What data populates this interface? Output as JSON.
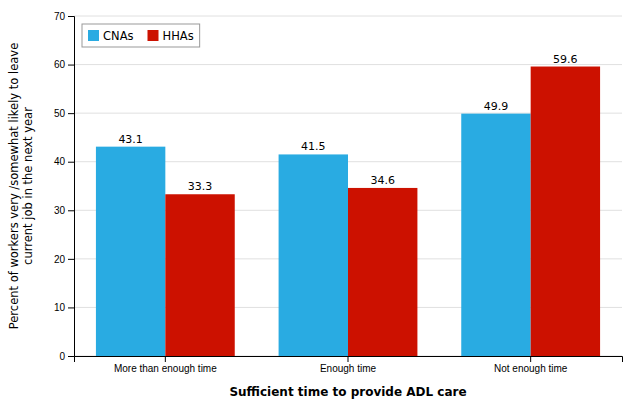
{
  "chart_data": {
    "type": "bar",
    "categories": [
      "More than enough time",
      "Enough time",
      "Not enough time"
    ],
    "series": [
      {
        "name": "CNAs",
        "color": "#29ABE2",
        "values": [
          43.1,
          41.5,
          49.9
        ]
      },
      {
        "name": "HHAs",
        "color": "#CC1100",
        "values": [
          33.3,
          34.6,
          59.6
        ]
      }
    ],
    "xlabel": "Sufficient time to provide ADL care",
    "ylabel": "Percent of workers very /somewhat likely to leave\ncurrent job in the next year",
    "ylim": [
      0,
      70
    ],
    "yticks": [
      0,
      10,
      20,
      30,
      40,
      50,
      60,
      70
    ],
    "grid": true,
    "legend": "upper left",
    "data_labels": true
  }
}
